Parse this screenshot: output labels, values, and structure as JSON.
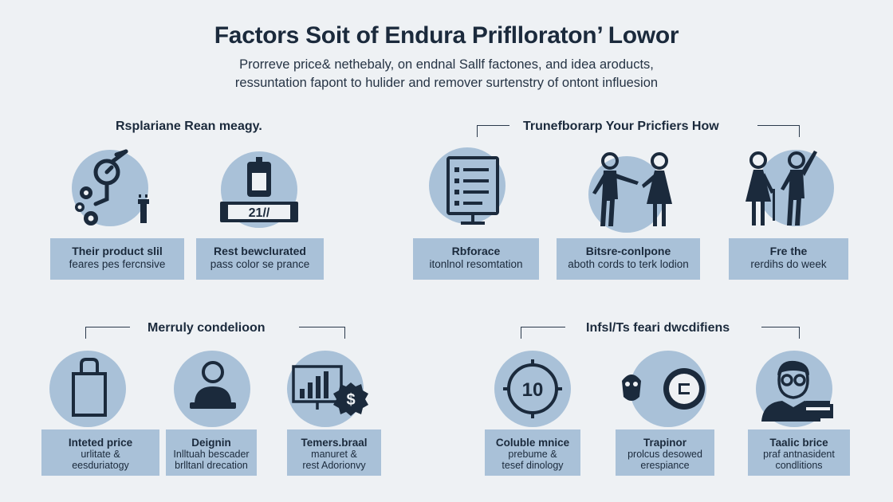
{
  "header": {
    "title": "Factors Soit of Endura Priflloraton’ Lowor",
    "subtitle_line1": "Prorreve price& nethebaly, on endnal Sallf factones, and idea aroducts,",
    "subtitle_line2": "ressuntation fapont to hulider and remover surtenstry of ontont influesion"
  },
  "sections": [
    {
      "label": "Rsplariane Rean meagy."
    },
    {
      "label": "Trunefborarp Your Pricfiers How"
    },
    {
      "label": "Merruly condelioon"
    },
    {
      "label": "Infsl/Ts feari dwcdifiens"
    }
  ],
  "top_cards": [
    {
      "icon": "stopwatch-gears-icon",
      "title": "Their product slil",
      "text": "feares pes fercnsive"
    },
    {
      "icon": "price-display-icon",
      "display": "21//",
      "title": "Rest bewclurated",
      "text": "pass color se prance"
    },
    {
      "icon": "checklist-board-icon",
      "title": "Rbforace",
      "text": "itonlnol resomtation"
    },
    {
      "icon": "people-pointing-icon",
      "title": "Bitsre-conlpone",
      "text": "aboth cords to terk lodion"
    },
    {
      "icon": "people-waving-icon",
      "title": "Fre the",
      "text": "rerdihs do week"
    }
  ],
  "bottom_cards": [
    {
      "icon": "shopping-bag-icon",
      "title": "Inteted price",
      "text1": "urlitate &",
      "text2": "eesduriatogy"
    },
    {
      "icon": "person-at-laptop-icon",
      "title": "Deignin",
      "text1": "Inlltuah bescader",
      "text2": "brlltanl drecation"
    },
    {
      "icon": "chart-dollar-icon",
      "title": "Temers.braal",
      "text1": "manuret &",
      "text2": "rest Adorionvy"
    },
    {
      "icon": "number-dial-icon",
      "dial": "10",
      "title": "Coluble mnice",
      "text1": "prebume &",
      "text2": "tesef dinology"
    },
    {
      "icon": "mask-and-badge-icon",
      "title": "Trapinor",
      "text1": "prolcus desowed",
      "text2": "erespiance"
    },
    {
      "icon": "person-glasses-icon",
      "title": "Taalic brice",
      "text1": "praf antnasident",
      "text2": "condlitions"
    }
  ],
  "colors": {
    "background": "#eef1f4",
    "accent": "#a9c1d8",
    "ink": "#1b2a3c"
  }
}
